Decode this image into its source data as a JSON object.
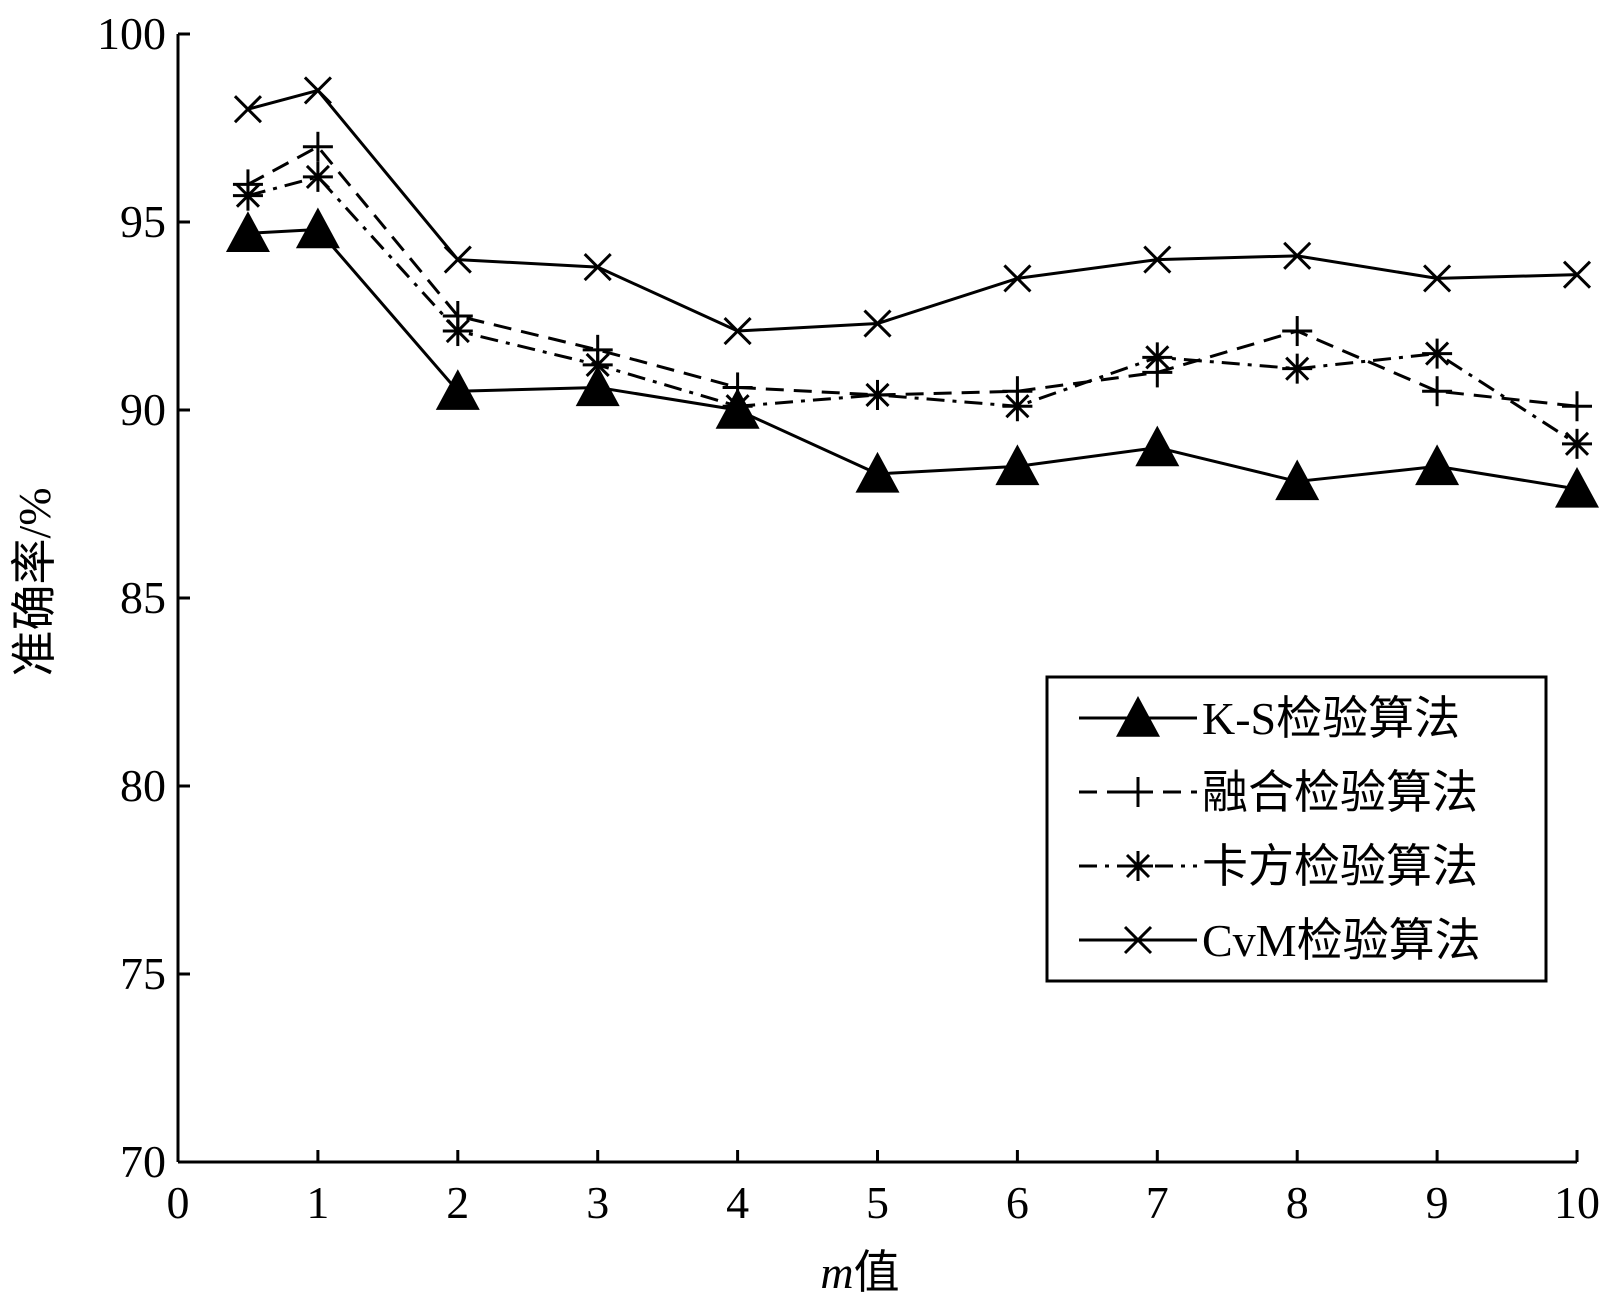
{
  "chart_data": {
    "type": "line",
    "xlabel": {
      "italic": "m",
      "rest": "值"
    },
    "ylabel": "准确率/%",
    "xlim": [
      0,
      10
    ],
    "ylim": [
      70,
      100
    ],
    "xticks": [
      "0",
      "1",
      "2",
      "3",
      "4",
      "5",
      "6",
      "7",
      "8",
      "9",
      "10"
    ],
    "yticks": [
      "70",
      "75",
      "80",
      "85",
      "90",
      "95",
      "100"
    ],
    "grid": false,
    "legend_position": "bottom-right",
    "x": [
      0.5,
      1,
      2,
      3,
      4,
      5,
      6,
      7,
      8,
      9,
      10
    ],
    "series": [
      {
        "name": "K-S检验算法",
        "marker": "filled-triangle",
        "line": "solid",
        "values": [
          94.7,
          94.8,
          90.5,
          90.6,
          90.0,
          88.3,
          88.5,
          89.0,
          88.1,
          88.5,
          87.9
        ]
      },
      {
        "name": "融合检验算法",
        "marker": "plus",
        "line": "dashed",
        "values": [
          96.0,
          97.0,
          92.5,
          91.6,
          90.6,
          90.4,
          90.5,
          91.0,
          92.1,
          90.5,
          90.1
        ]
      },
      {
        "name": "卡方检验算法",
        "marker": "asterisk",
        "line": "dash-dot",
        "values": [
          95.7,
          96.2,
          92.1,
          91.2,
          90.1,
          90.4,
          90.1,
          91.4,
          91.1,
          91.5,
          89.1
        ]
      },
      {
        "name": "CvM检验算法",
        "marker": "cross",
        "line": "solid",
        "values": [
          98.0,
          98.5,
          94.0,
          93.8,
          92.1,
          92.3,
          93.5,
          94.0,
          94.1,
          93.5,
          93.6
        ]
      }
    ]
  }
}
